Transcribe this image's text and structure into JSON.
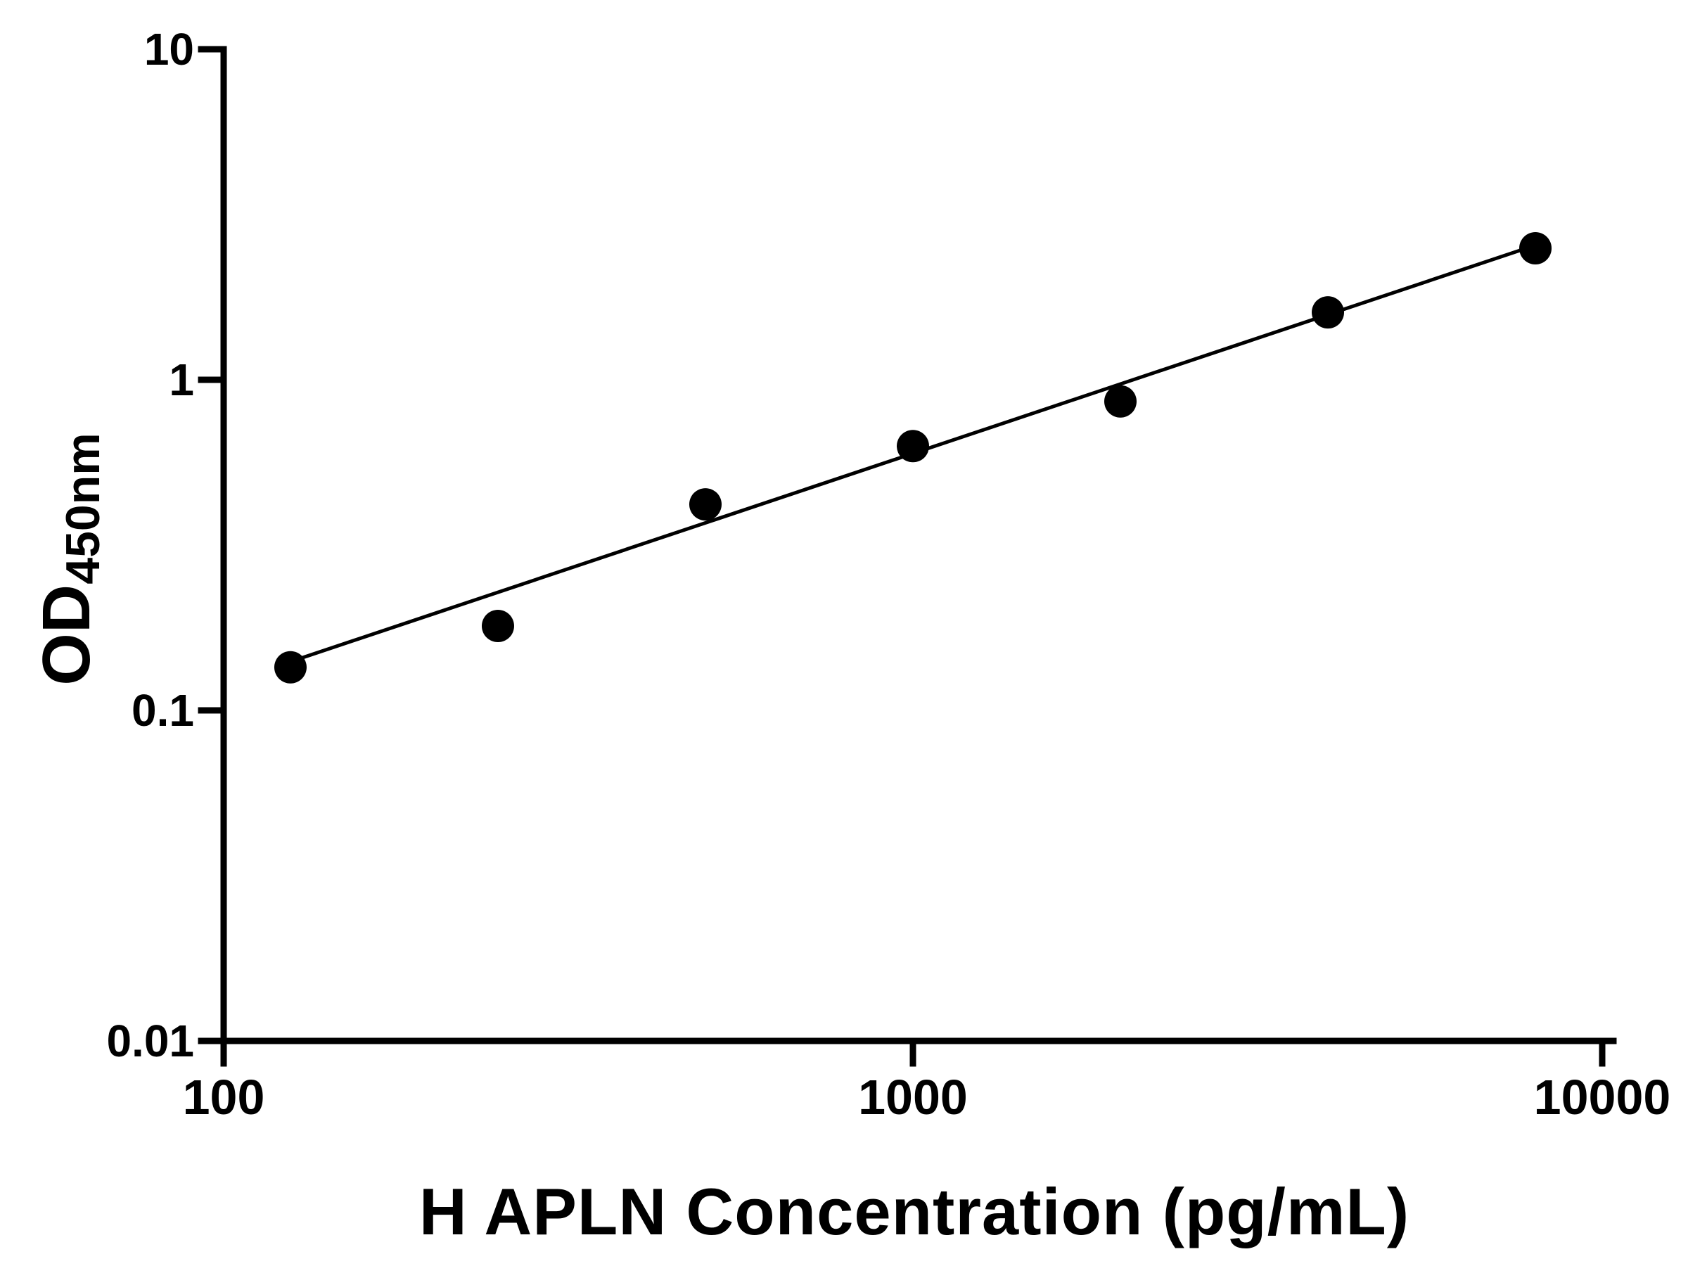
{
  "page": {
    "background": "#ffffff",
    "foreground": "#000000"
  },
  "chart_data": {
    "type": "scatter",
    "title": "",
    "xlabel": "H APLN Concentration (pg/mL)",
    "ylabel": "OD450nm",
    "ylabel_main": "OD",
    "ylabel_sub": "450nm",
    "x_scale": "log10",
    "y_scale": "log10",
    "xlim": [
      100,
      10000
    ],
    "ylim": [
      0.01,
      10
    ],
    "grid": false,
    "legend": "none",
    "axis_color": "#000000",
    "x_ticks": [
      {
        "value": 100,
        "label": "100"
      },
      {
        "value": 1000,
        "label": "1000"
      },
      {
        "value": 10000,
        "label": "10000"
      }
    ],
    "y_ticks": [
      {
        "value": 0.01,
        "label": "0.01"
      },
      {
        "value": 0.1,
        "label": "0.1"
      },
      {
        "value": 1,
        "label": "1"
      },
      {
        "value": 10,
        "label": "10"
      }
    ],
    "series": [
      {
        "name": "fit-line",
        "type": "line",
        "color": "#000000",
        "x": [
          122,
          8300
        ],
        "y": [
          0.138,
          2.62
        ]
      },
      {
        "name": "standard-points",
        "type": "scatter",
        "marker": "filled-circle",
        "color": "#000000",
        "x": [
          125,
          250,
          500,
          1000,
          2000,
          4000,
          8000
        ],
        "y": [
          0.135,
          0.18,
          0.42,
          0.63,
          0.86,
          1.6,
          2.5
        ]
      }
    ]
  }
}
